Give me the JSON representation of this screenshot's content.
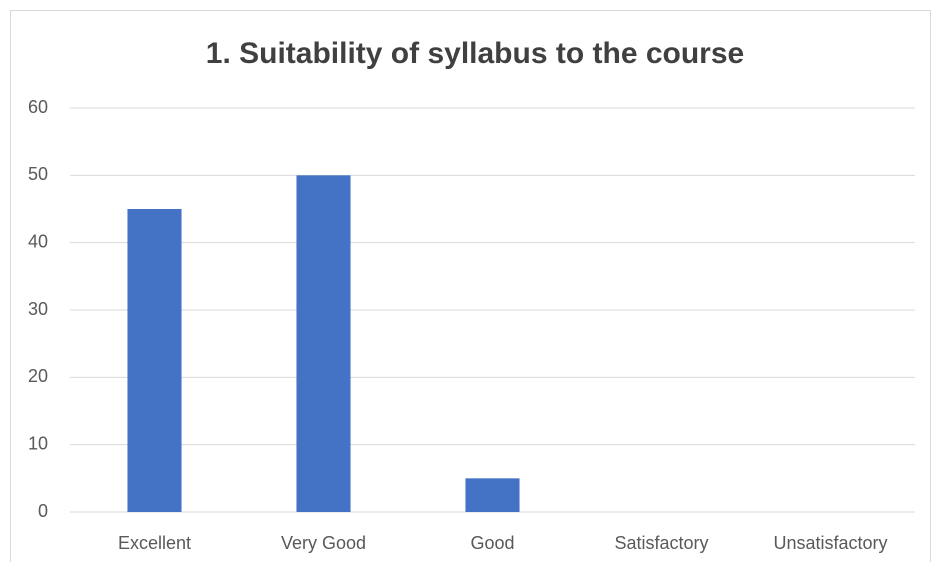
{
  "chart_data": {
    "type": "bar",
    "title": "1. Suitability of syllabus to the course",
    "categories": [
      "Excellent",
      "Very Good",
      "Good",
      "Satisfactory",
      "Unsatisfactory"
    ],
    "values": [
      45,
      50,
      5,
      0,
      0
    ],
    "color": "#4472c4",
    "ylim": [
      0,
      60
    ],
    "yticks": [
      0,
      10,
      20,
      30,
      40,
      50,
      60
    ],
    "grid": true
  }
}
